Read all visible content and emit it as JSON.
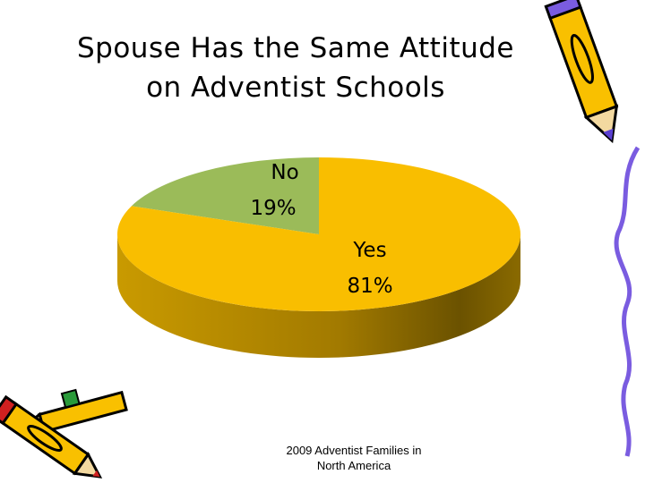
{
  "title_line1": "Spouse Has the Same Attitude",
  "title_line2": "on Adventist Schools",
  "caption_line1": "2009 Adventist Families in",
  "caption_line2": "North America",
  "chart_data": {
    "type": "pie",
    "style": "3d",
    "categories": [
      "No",
      "Yes"
    ],
    "values": [
      19,
      81
    ],
    "labels": [
      {
        "name": "No",
        "pct": "19%"
      },
      {
        "name": "Yes",
        "pct": "81%"
      }
    ],
    "colors": {
      "No": "#9BBB59",
      "Yes": "#F9BE00"
    },
    "legend": "none"
  },
  "decorations": [
    "pencil-icon",
    "pencils-icon",
    "squiggle-line"
  ]
}
